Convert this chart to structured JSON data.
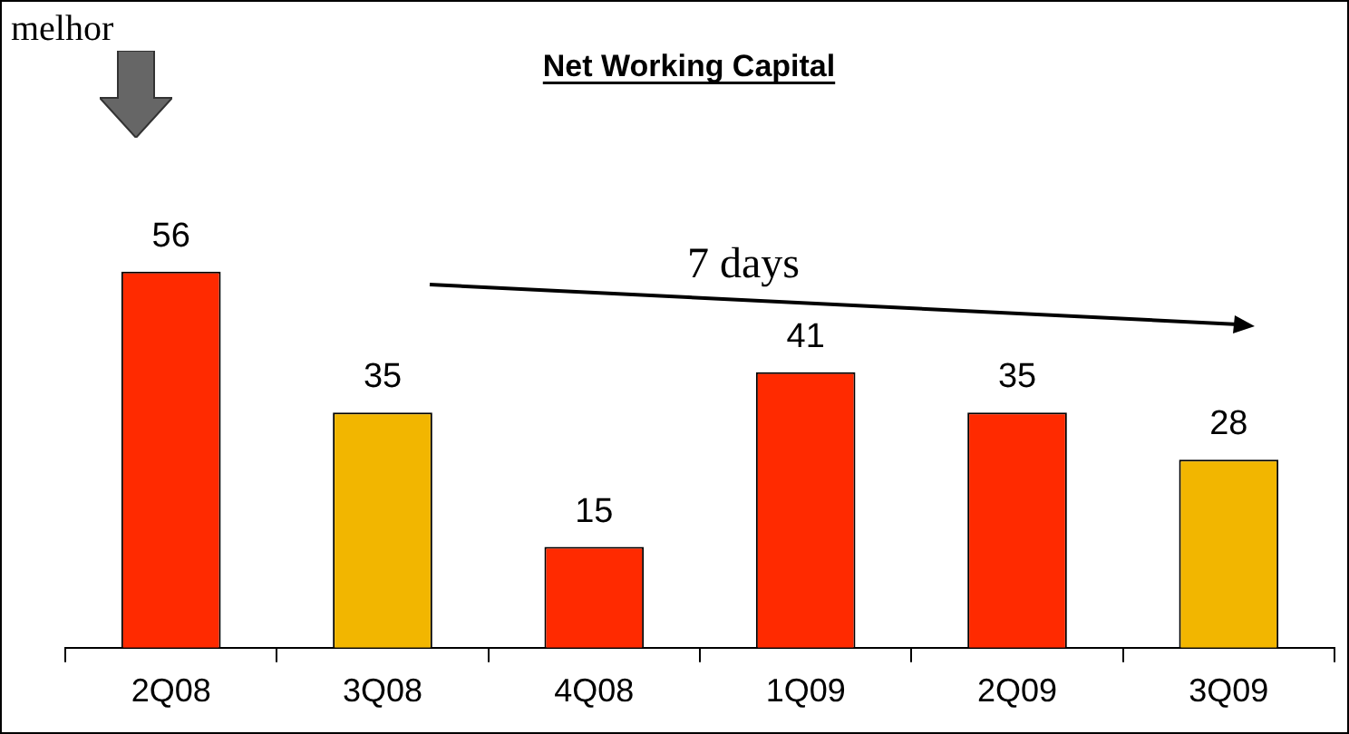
{
  "chart_data": {
    "type": "bar",
    "title": "Net Working Capital",
    "categories": [
      "2Q08",
      "3Q08",
      "4Q08",
      "1Q09",
      "2Q09",
      "3Q09"
    ],
    "values": [
      56,
      35,
      15,
      41,
      35,
      28
    ],
    "colors": [
      "#ff2a00",
      "#f2b600",
      "#ff2a00",
      "#ff2a00",
      "#ff2a00",
      "#f2b600"
    ],
    "data_labels": true,
    "annotations": [
      "melhor",
      "7 days"
    ]
  }
}
